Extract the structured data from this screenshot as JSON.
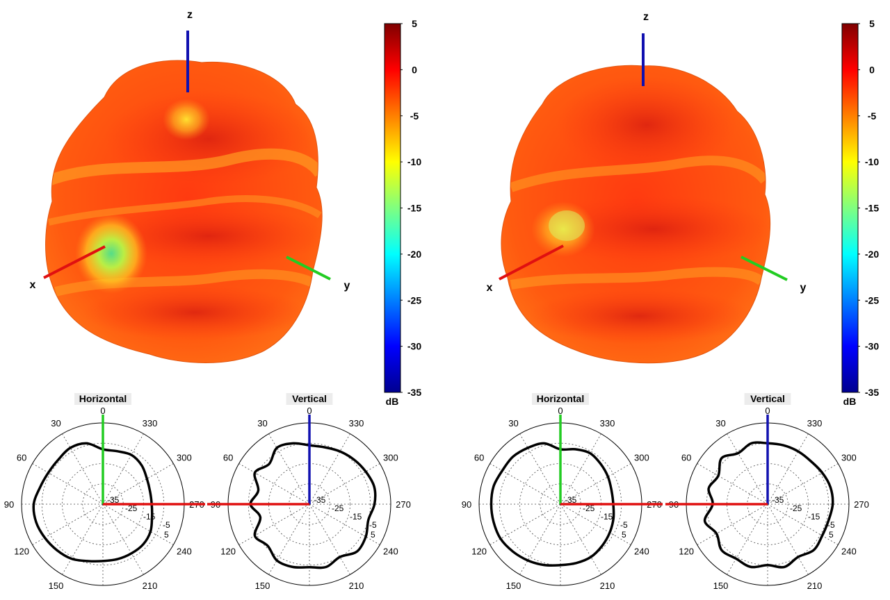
{
  "panels": [
    {
      "axis_labels": {
        "x": "x",
        "y": "y",
        "z": "z"
      },
      "colorbar": {
        "unit": "dB",
        "ticks": [
          "5",
          "0",
          "-5",
          "-10",
          "-15",
          "-20",
          "-25",
          "-30",
          "-35"
        ],
        "min": -35,
        "max": 5
      },
      "surface_dips": [
        {
          "near": "x-axis",
          "level_db": -18
        },
        {
          "near": "z-axis top",
          "level_db": -9
        }
      ]
    },
    {
      "axis_labels": {
        "x": "x",
        "y": "y",
        "z": "z"
      },
      "colorbar": {
        "unit": "dB",
        "ticks": [
          "5",
          "0",
          "-5",
          "-10",
          "-15",
          "-20",
          "-25",
          "-30",
          "-35"
        ],
        "min": -35,
        "max": 5
      },
      "surface_dips": [
        {
          "near": "x-axis",
          "level_db": -13
        }
      ]
    }
  ],
  "polar_common": {
    "angle_labels": [
      "0",
      "30",
      "60",
      "90",
      "120",
      "150",
      "210",
      "240",
      "270",
      "300",
      "330"
    ],
    "radial_labels": [
      "-35",
      "-25",
      "-15",
      "-5",
      "5"
    ],
    "colors": {
      "red_axis": "#e01010",
      "green_axis": "#22cc22",
      "blue_axis": "#1010b0",
      "trace": "#000000"
    }
  },
  "chart_data": [
    {
      "type": "polar",
      "title": "Horizontal",
      "angle_direction": "counterclockwise",
      "zero_at": "top",
      "r_range_db": [
        -35,
        5
      ],
      "angles_deg": [
        0,
        15,
        30,
        45,
        60,
        75,
        90,
        105,
        120,
        135,
        150,
        165,
        180,
        195,
        210,
        225,
        240,
        255,
        270,
        285,
        300,
        315,
        330,
        345
      ],
      "values_db": [
        -8,
        -4,
        -3,
        -4,
        -4,
        -3,
        -1,
        -1,
        -2,
        -3,
        -4,
        -6,
        -7,
        -7,
        -7,
        -7,
        -8,
        -10,
        -11,
        -11,
        -10,
        -8,
        -7,
        -8
      ]
    },
    {
      "type": "polar",
      "title": "Vertical",
      "angle_direction": "counterclockwise",
      "zero_at": "top",
      "r_range_db": [
        -35,
        5
      ],
      "angles_deg": [
        0,
        15,
        30,
        45,
        60,
        75,
        90,
        105,
        120,
        135,
        150,
        165,
        180,
        195,
        210,
        225,
        240,
        255,
        270,
        285,
        300,
        315,
        330,
        345
      ],
      "values_db": [
        -6,
        -4,
        -3,
        -7,
        -4,
        -9,
        -6,
        -10,
        -4,
        -6,
        -3,
        -3,
        -4,
        -3,
        -5,
        -2,
        -3,
        -5,
        -3,
        -2,
        -3,
        -4,
        -5,
        -6
      ]
    },
    {
      "type": "polar",
      "title": "Horizontal",
      "angle_direction": "counterclockwise",
      "zero_at": "top",
      "r_range_db": [
        -35,
        5
      ],
      "angles_deg": [
        0,
        15,
        30,
        45,
        60,
        75,
        90,
        105,
        120,
        135,
        150,
        165,
        180,
        195,
        210,
        225,
        240,
        255,
        270,
        285,
        300,
        315,
        330,
        345
      ],
      "values_db": [
        -8,
        -4,
        -3,
        -2,
        -2,
        -1,
        -1,
        -1,
        -1,
        -2,
        -3,
        -4,
        -5,
        -5,
        -5,
        -6,
        -7,
        -8,
        -9,
        -9,
        -8,
        -7,
        -6,
        -7
      ]
    },
    {
      "type": "polar",
      "title": "Vertical",
      "angle_direction": "counterclockwise",
      "zero_at": "top",
      "r_range_db": [
        -35,
        5
      ],
      "angles_deg": [
        0,
        15,
        30,
        45,
        60,
        75,
        90,
        105,
        120,
        135,
        150,
        165,
        180,
        195,
        210,
        225,
        240,
        255,
        270,
        285,
        300,
        315,
        330,
        345
      ],
      "values_db": [
        -5,
        -4,
        -6,
        -3,
        -7,
        -5,
        -8,
        -3,
        -6,
        -3,
        -4,
        -3,
        -5,
        -3,
        -5,
        -3,
        -4,
        -4,
        -3,
        -3,
        -4,
        -5,
        -5,
        -5
      ]
    }
  ]
}
